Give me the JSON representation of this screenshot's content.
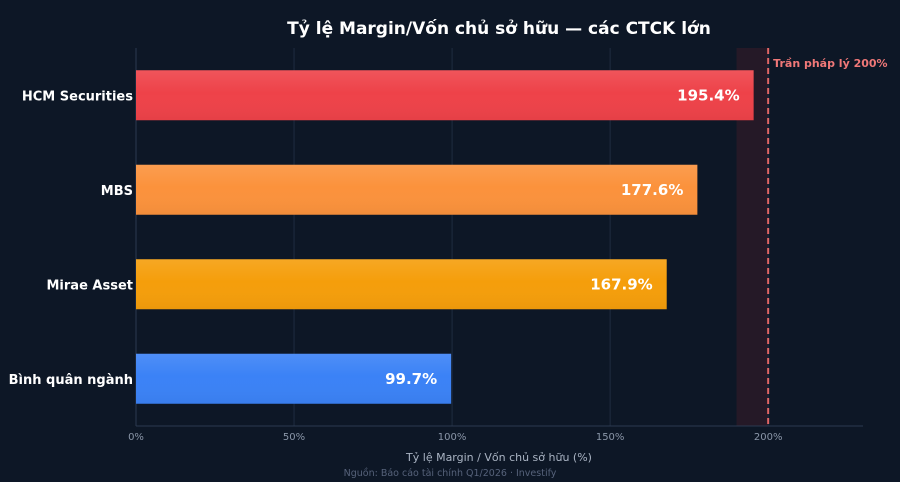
{
  "chart_data": {
    "type": "bar",
    "orientation": "horizontal",
    "title": "Tỷ lệ Margin/Vốn chủ sở hữu — các CTCK lớn",
    "xlabel": "Tỷ lệ Margin / Vốn chủ sở hữu (%)",
    "ylabel": "",
    "xlim": [
      0,
      230
    ],
    "xticks": [
      0,
      50,
      100,
      150,
      200
    ],
    "tick_labels": [
      "0%",
      "50%",
      "100%",
      "150%",
      "200%"
    ],
    "grid": true,
    "categories": [
      "HCM Securities",
      "MBS",
      "Mirae Asset",
      "Bình quân ngành"
    ],
    "values": [
      195.4,
      177.6,
      167.9,
      99.7
    ],
    "value_labels": [
      "195.4%",
      "177.6%",
      "167.9%",
      "99.7%"
    ],
    "colors": [
      "#ee4249",
      "#fb923c",
      "#f59e0b",
      "#3b82f6"
    ],
    "reference_line": {
      "value": 200,
      "label": "Trần pháp lý 200%",
      "color": "#e06666"
    },
    "highlight_band": {
      "from": 190,
      "to": 200,
      "color": "#2a1a28"
    },
    "source": "Nguồn: Báo cáo tài chính Q1/2026 · Investify"
  }
}
